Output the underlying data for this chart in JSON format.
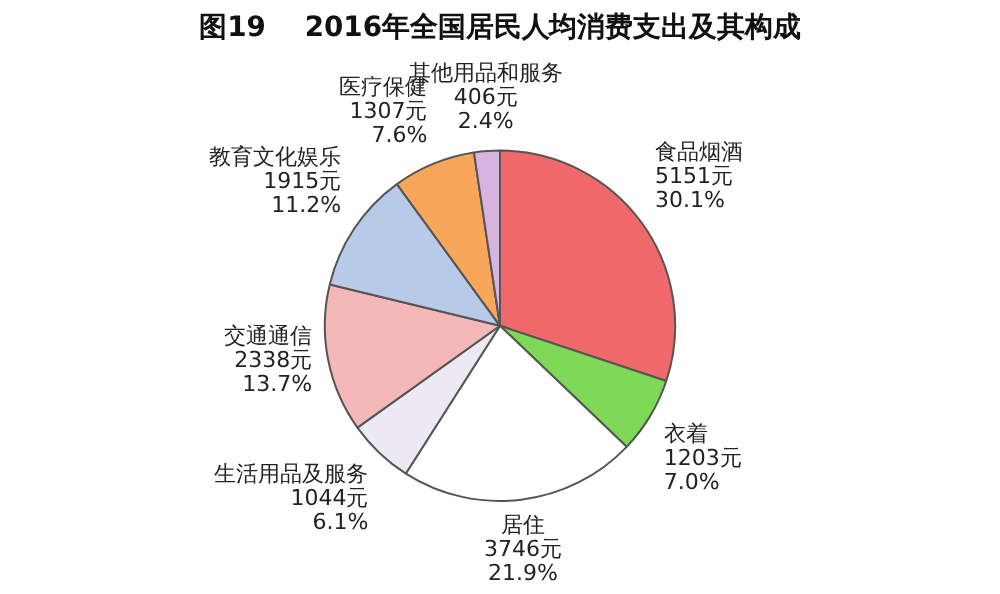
{
  "chart_data": {
    "type": "pie",
    "title": "图19    2016年全国居民人均消费支出及其构成",
    "categories": [
      "食品烟酒",
      "衣着",
      "居住",
      "生活用品及服务",
      "交通通信",
      "教育文化娱乐",
      "医疗保健",
      "其他用品和服务"
    ],
    "values": [
      5151,
      1203,
      3746,
      1044,
      2338,
      1915,
      1307,
      406
    ],
    "value_labels": [
      "5151元\n30.1%",
      "1203元\n7.0%",
      "3746元\n21.9%",
      "1044元\n6.1%",
      "2338元\n13.7%",
      "1915元\n11.2%",
      "1307元\n7.6%",
      "406元\n2.4%"
    ],
    "colors": [
      "#f0686a",
      "#7ed957",
      "#ffffff",
      "#ece8f4",
      "#f4b8b8",
      "#b7cbe9",
      "#f7a65a",
      "#d7b4e0"
    ],
    "legend": false
  }
}
